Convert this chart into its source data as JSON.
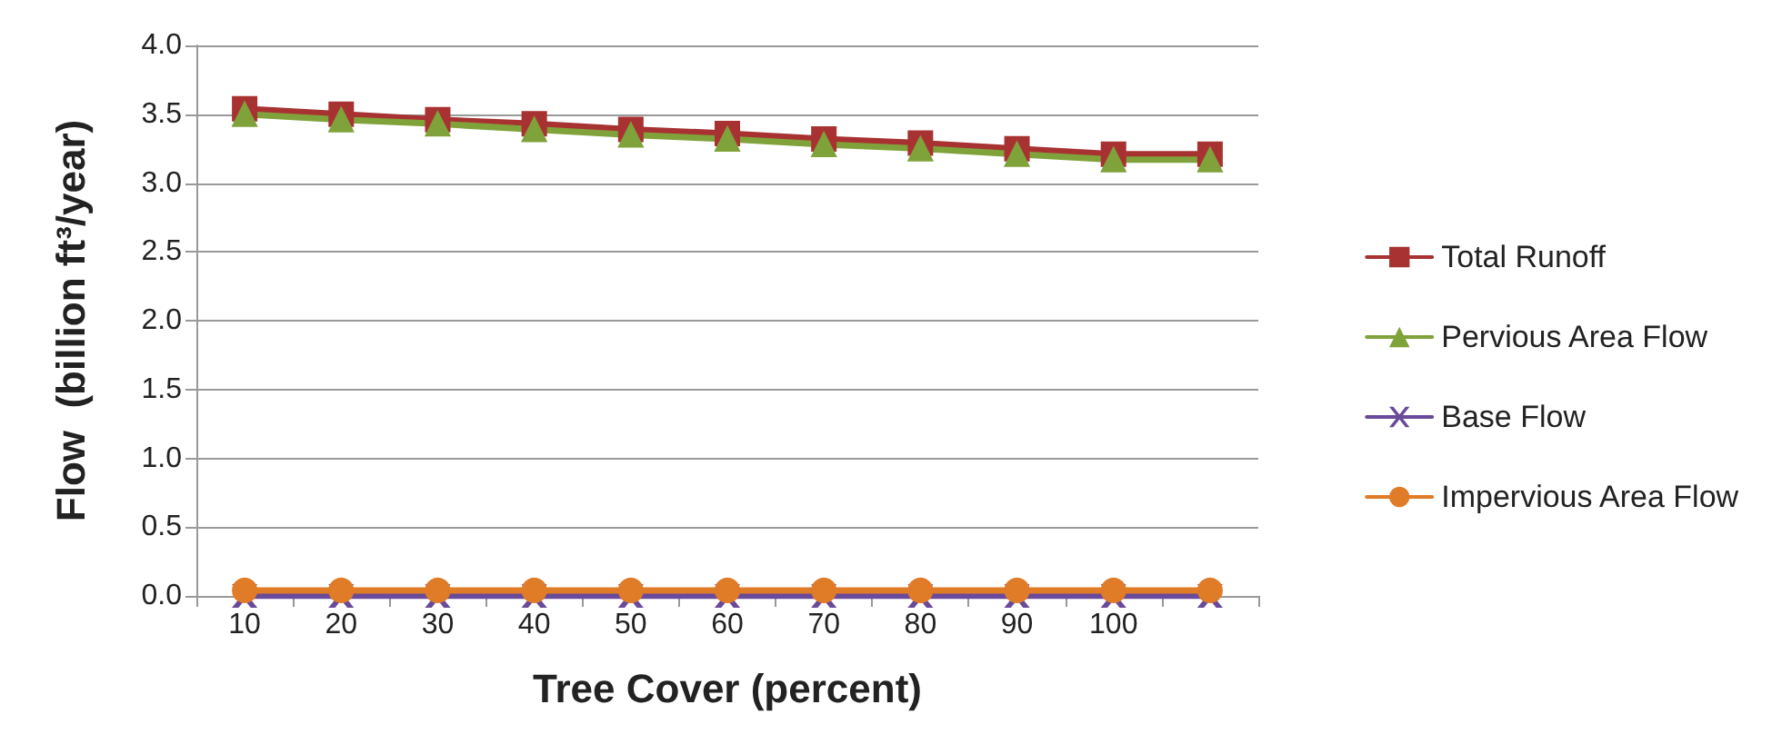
{
  "chart_data": {
    "type": "line",
    "xlabel": "Tree Cover (percent)",
    "ylabel": "Flow  (billion ft³/year)",
    "categories": [
      "10",
      "20",
      "30",
      "40",
      "50",
      "60",
      "70",
      "80",
      "90",
      "100",
      null
    ],
    "series": [
      {
        "name": "Total Runoff",
        "color": "#a83232",
        "marker": "square",
        "values": [
          3.54,
          3.5,
          3.46,
          3.43,
          3.39,
          3.36,
          3.32,
          3.29,
          3.25,
          3.21,
          3.21
        ]
      },
      {
        "name": "Pervious Area Flow",
        "color": "#7fa23a",
        "marker": "triangle",
        "values": [
          3.5,
          3.46,
          3.43,
          3.39,
          3.35,
          3.32,
          3.28,
          3.25,
          3.21,
          3.17,
          3.17
        ]
      },
      {
        "name": "Base Flow",
        "color": "#6a4a9a",
        "marker": "cross",
        "values": [
          0,
          0,
          0,
          0,
          0,
          0,
          0,
          0,
          0,
          0,
          0
        ]
      },
      {
        "name": "Impervious Area Flow",
        "color": "#e07b28",
        "marker": "circle",
        "values": [
          0.04,
          0.04,
          0.04,
          0.04,
          0.04,
          0.04,
          0.04,
          0.04,
          0.04,
          0.04,
          0.04
        ]
      }
    ],
    "ylim": [
      0,
      4
    ],
    "yticks": [
      {
        "value": 0,
        "label": "0.0"
      },
      {
        "value": 0.5,
        "label": "0.5"
      },
      {
        "value": 1,
        "label": "1.0"
      },
      {
        "value": 1.5,
        "label": "1.5"
      },
      {
        "value": 2,
        "label": "2.0"
      },
      {
        "value": 2.5,
        "label": "2.5"
      },
      {
        "value": 3,
        "label": "3.0"
      },
      {
        "value": 3.5,
        "label": "3.5"
      },
      {
        "value": 4,
        "label": "4.0"
      }
    ],
    "grid": "y",
    "legend": "right"
  }
}
